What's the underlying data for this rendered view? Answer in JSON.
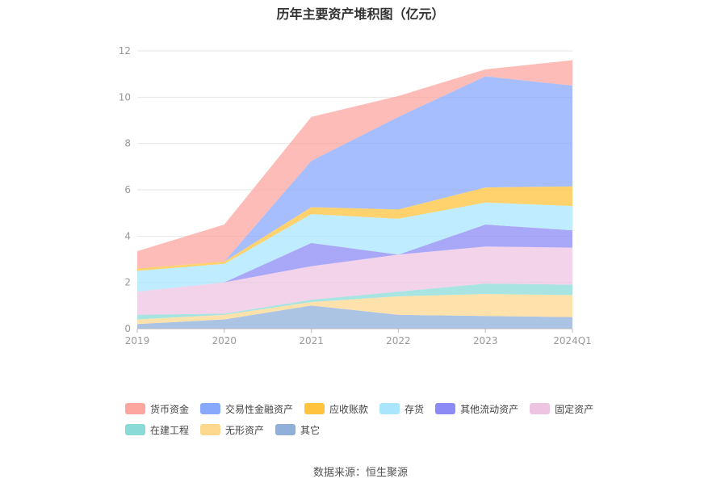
{
  "chart_data": {
    "type": "area",
    "stacked": true,
    "title": "历年主要资产堆积图（亿元）",
    "x": [
      "2019",
      "2020",
      "2021",
      "2022",
      "2023",
      "2024Q1"
    ],
    "ylim": [
      0,
      12
    ],
    "yticks": [
      0,
      2,
      4,
      6,
      8,
      10,
      12
    ],
    "grid": true,
    "legend_position": "bottom",
    "series": [
      {
        "name": "其它",
        "color": "#8fb0d9",
        "values": [
          0.2,
          0.4,
          1.0,
          0.6,
          0.55,
          0.5
        ]
      },
      {
        "name": "无形资产",
        "color": "#ffd88f",
        "values": [
          0.2,
          0.2,
          0.15,
          0.8,
          0.95,
          0.95
        ]
      },
      {
        "name": "在建工程",
        "color": "#8adbd8",
        "values": [
          0.2,
          0.05,
          0.1,
          0.2,
          0.45,
          0.45
        ]
      },
      {
        "name": "固定资产",
        "color": "#edc4e2",
        "values": [
          1.0,
          1.35,
          1.45,
          1.6,
          1.6,
          1.6
        ]
      },
      {
        "name": "其他流动资产",
        "color": "#8c8bf5",
        "values": [
          0.0,
          0.0,
          1.0,
          0.0,
          0.95,
          0.75
        ]
      },
      {
        "name": "存货",
        "color": "#a9e5fd",
        "values": [
          0.9,
          0.8,
          1.25,
          1.55,
          0.95,
          1.05
        ]
      },
      {
        "name": "应收账款",
        "color": "#ffc33d",
        "values": [
          0.1,
          0.1,
          0.3,
          0.4,
          0.65,
          0.85
        ]
      },
      {
        "name": "交易性金融资产",
        "color": "#88a8fc",
        "values": [
          0.0,
          0.0,
          2.0,
          4.0,
          4.8,
          4.35
        ]
      },
      {
        "name": "货币资金",
        "color": "#fca69f",
        "values": [
          0.75,
          1.6,
          1.9,
          0.9,
          0.3,
          1.1
        ]
      }
    ]
  },
  "legend": {
    "row1": [
      "货币资金",
      "交易性金融资产",
      "应收账款",
      "存货",
      "其他流动资产",
      "固定资产"
    ],
    "row2": [
      "在建工程",
      "无形资产",
      "其它"
    ],
    "colors": {
      "货币资金": "#fca69f",
      "交易性金融资产": "#88a8fc",
      "应收账款": "#ffc33d",
      "存货": "#a9e5fd",
      "其他流动资产": "#8c8bf5",
      "固定资产": "#edc4e2",
      "在建工程": "#8adbd8",
      "无形资产": "#ffd88f",
      "其它": "#8fb0d9"
    }
  },
  "source": "数据来源：恒生聚源"
}
